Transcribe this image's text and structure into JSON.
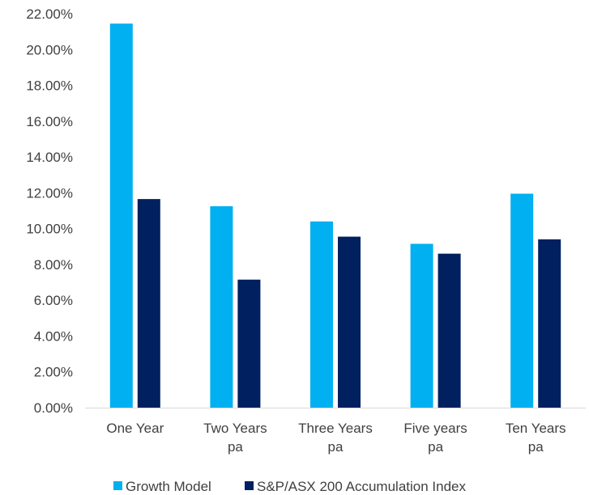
{
  "chart_data": {
    "type": "bar",
    "title": "",
    "xlabel": "",
    "ylabel": "",
    "categories": [
      [
        "One Year"
      ],
      [
        "Two Years",
        "pa"
      ],
      [
        "Three Years",
        "pa"
      ],
      [
        "Five years",
        "pa"
      ],
      [
        "Ten Years",
        "pa"
      ]
    ],
    "series": [
      {
        "name": "Growth Model",
        "color": "#00B0F0",
        "values": [
          21.45,
          11.25,
          10.4,
          9.15,
          11.95
        ]
      },
      {
        "name": "S&P/ASX 200 Accumulation Index",
        "color": "#002060",
        "values": [
          11.65,
          7.15,
          9.55,
          8.6,
          9.4
        ]
      }
    ],
    "ylim": [
      0,
      22
    ],
    "yticks": [
      0,
      2,
      4,
      6,
      8,
      10,
      12,
      14,
      16,
      18,
      20,
      22
    ],
    "ytick_labels": [
      "0.00%",
      "2.00%",
      "4.00%",
      "6.00%",
      "8.00%",
      "10.00%",
      "12.00%",
      "14.00%",
      "16.00%",
      "18.00%",
      "20.00%",
      "22.00%"
    ],
    "grid": false,
    "legend_position": "bottom",
    "axis_color": "#D9D9D9"
  }
}
